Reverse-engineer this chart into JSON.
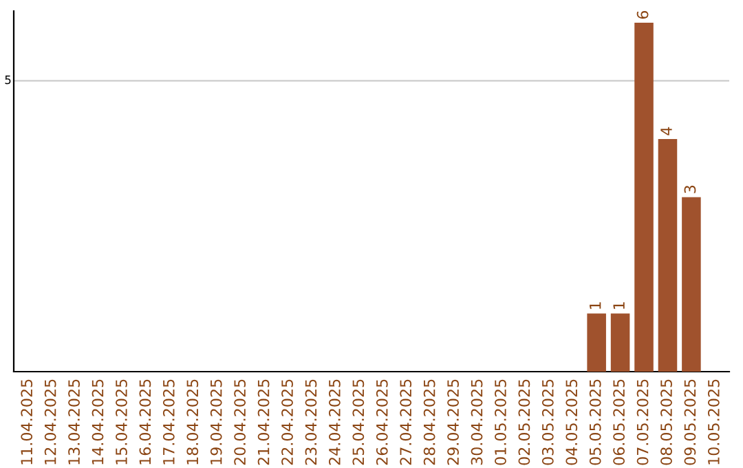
{
  "chart_data": {
    "type": "bar",
    "categories": [
      "11.04.2025",
      "12.04.2025",
      "13.04.2025",
      "14.04.2025",
      "15.04.2025",
      "16.04.2025",
      "17.04.2025",
      "18.04.2025",
      "19.04.2025",
      "20.04.2025",
      "21.04.2025",
      "22.04.2025",
      "23.04.2025",
      "24.04.2025",
      "25.04.2025",
      "26.04.2025",
      "27.04.2025",
      "28.04.2025",
      "29.04.2025",
      "30.04.2025",
      "01.05.2025",
      "02.05.2025",
      "03.05.2025",
      "04.05.2025",
      "05.05.2025",
      "06.05.2025",
      "07.05.2025",
      "08.05.2025",
      "09.05.2025",
      "10.05.2025"
    ],
    "values": [
      null,
      null,
      null,
      null,
      null,
      null,
      null,
      null,
      null,
      null,
      null,
      null,
      null,
      null,
      null,
      null,
      null,
      null,
      null,
      null,
      null,
      null,
      null,
      null,
      1,
      1,
      6,
      4,
      3,
      null
    ],
    "data_labels": true,
    "color": "#a0522d",
    "ylim": [
      0,
      6.2
    ],
    "ref_lines": [
      {
        "axis": "y",
        "value": 5,
        "label": "5",
        "color": "#cccccc"
      }
    ]
  }
}
